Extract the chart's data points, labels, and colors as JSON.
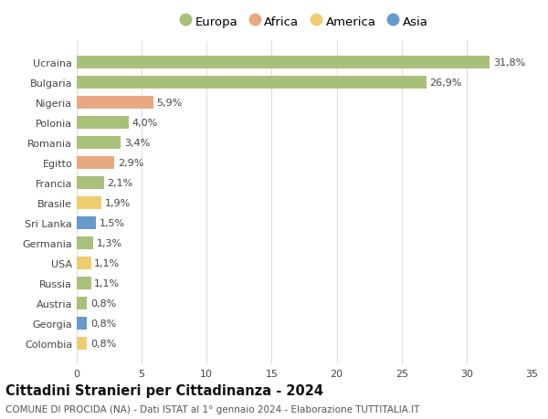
{
  "title": "Cittadini Stranieri per Cittadinanza - 2024",
  "subtitle": "COMUNE DI PROCIDA (NA) - Dati ISTAT al 1° gennaio 2024 - Elaborazione TUTTITALIA.IT",
  "categories": [
    "Ucraina",
    "Bulgaria",
    "Nigeria",
    "Polonia",
    "Romania",
    "Egitto",
    "Francia",
    "Brasile",
    "Sri Lanka",
    "Germania",
    "USA",
    "Russia",
    "Austria",
    "Georgia",
    "Colombia"
  ],
  "values": [
    31.8,
    26.9,
    5.9,
    4.0,
    3.4,
    2.9,
    2.1,
    1.9,
    1.5,
    1.3,
    1.1,
    1.1,
    0.8,
    0.8,
    0.8
  ],
  "labels": [
    "31,8%",
    "26,9%",
    "5,9%",
    "4,0%",
    "3,4%",
    "2,9%",
    "2,1%",
    "1,9%",
    "1,5%",
    "1,3%",
    "1,1%",
    "1,1%",
    "0,8%",
    "0,8%",
    "0,8%"
  ],
  "continents": [
    "Europa",
    "Europa",
    "Africa",
    "Europa",
    "Europa",
    "Africa",
    "Europa",
    "America",
    "Asia",
    "Europa",
    "America",
    "Europa",
    "Europa",
    "Asia",
    "America"
  ],
  "continent_colors": {
    "Europa": "#a8c07a",
    "Africa": "#e8a882",
    "America": "#f0cc70",
    "Asia": "#6699cc"
  },
  "legend_order": [
    "Europa",
    "Africa",
    "America",
    "Asia"
  ],
  "xlim": [
    0,
    35
  ],
  "xticks": [
    0,
    5,
    10,
    15,
    20,
    25,
    30,
    35
  ],
  "background_color": "#ffffff",
  "grid_color": "#dddddd",
  "bar_height": 0.62,
  "title_fontsize": 10.5,
  "subtitle_fontsize": 7.5,
  "label_fontsize": 8.0,
  "tick_fontsize": 8.0,
  "legend_fontsize": 9.5
}
